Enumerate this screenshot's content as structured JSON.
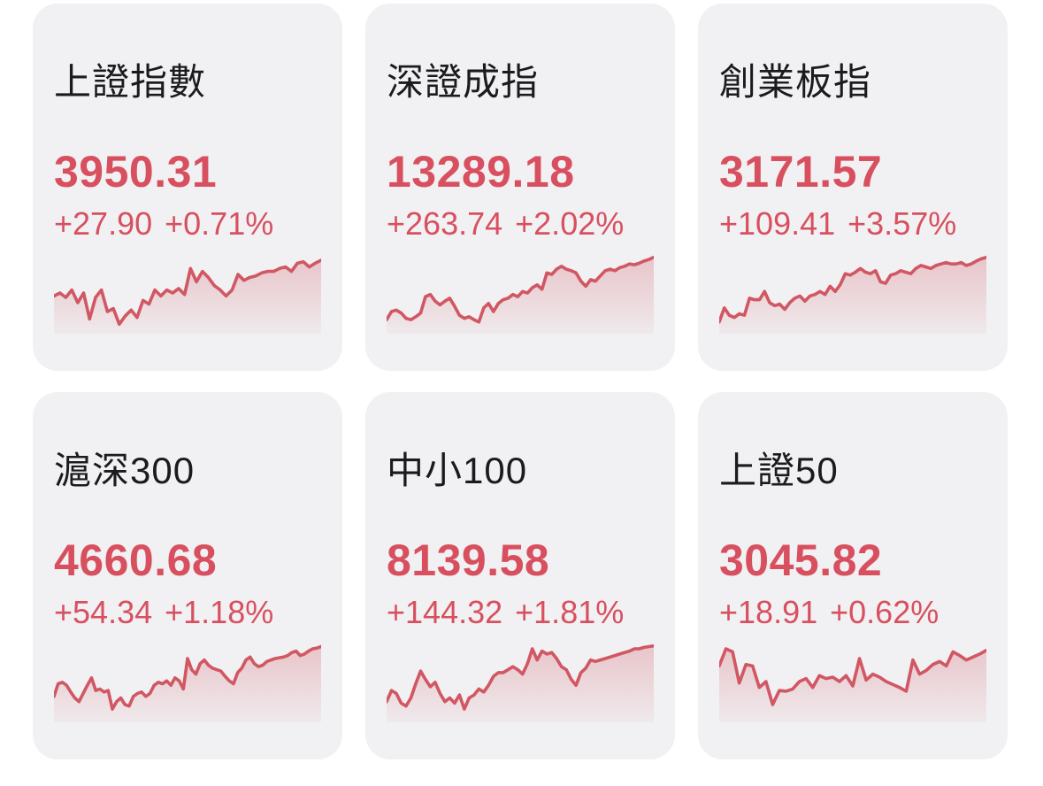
{
  "theme": {
    "page_bg": "#ffffff",
    "card_bg": "#f1f1f3",
    "title_color": "#1b1b1d",
    "accent_red": "#d8505f",
    "line_color": "#d15763",
    "fill_top": "rgba(209,87,99,0.30)",
    "fill_bottom": "rgba(209,87,99,0.05)"
  },
  "cards": [
    {
      "name": "上證指數",
      "price": "3950.31",
      "change": "+27.90",
      "change_pct": "+0.71%",
      "sparkline": {
        "type": "line",
        "trend": "up",
        "values": [
          46,
          50,
          44,
          54,
          37,
          50,
          15,
          44,
          54,
          25,
          29,
          8,
          19,
          27,
          17,
          40,
          35,
          54,
          46,
          54,
          50,
          56,
          48,
          83,
          65,
          79,
          71,
          60,
          54,
          46,
          54,
          75,
          67,
          71,
          73,
          77,
          79,
          79,
          83,
          85,
          79,
          90,
          92,
          85,
          90,
          94
        ]
      }
    },
    {
      "name": "深證成指",
      "price": "13289.18",
      "change": "+263.74",
      "change_pct": "+2.02%",
      "sparkline": {
        "type": "line",
        "trend": "up",
        "values": [
          14,
          25,
          27,
          23,
          16,
          14,
          18,
          23,
          45,
          48,
          39,
          34,
          39,
          43,
          32,
          20,
          16,
          18,
          14,
          11,
          30,
          36,
          25,
          36,
          41,
          43,
          48,
          45,
          52,
          50,
          57,
          61,
          55,
          77,
          75,
          82,
          86,
          82,
          80,
          77,
          66,
          59,
          68,
          66,
          73,
          80,
          82,
          80,
          84,
          86,
          89,
          88,
          90,
          93,
          95,
          98
        ]
      }
    },
    {
      "name": "創業板指",
      "price": "3171.57",
      "change": "+109.41",
      "change_pct": "+3.57%",
      "sparkline": {
        "type": "line",
        "trend": "up",
        "values": [
          11,
          30,
          20,
          17,
          22,
          20,
          43,
          41,
          41,
          52,
          37,
          33,
          35,
          28,
          37,
          43,
          46,
          39,
          46,
          48,
          52,
          48,
          59,
          52,
          61,
          76,
          74,
          78,
          83,
          78,
          76,
          80,
          65,
          63,
          74,
          76,
          80,
          78,
          76,
          83,
          87,
          85,
          83,
          87,
          89,
          91,
          89,
          89,
          91,
          87,
          89,
          93,
          96,
          98
        ]
      }
    },
    {
      "name": "滬深300",
      "price": "4660.68",
      "change": "+54.34",
      "change_pct": "+1.18%",
      "sparkline": {
        "type": "line",
        "trend": "up",
        "values": [
          30,
          47,
          49,
          45,
          36,
          28,
          23,
          34,
          45,
          55,
          38,
          40,
          36,
          38,
          13,
          23,
          28,
          19,
          17,
          30,
          34,
          36,
          30,
          34,
          45,
          49,
          47,
          51,
          45,
          55,
          51,
          40,
          81,
          66,
          60,
          74,
          79,
          72,
          68,
          66,
          64,
          57,
          51,
          47,
          62,
          68,
          79,
          83,
          74,
          70,
          72,
          77,
          79,
          81,
          82,
          83,
          85,
          89,
          91,
          85,
          87,
          91,
          94,
          95,
          97
        ]
      }
    },
    {
      "name": "中小100",
      "price": "8139.58",
      "change": "+144.32",
      "change_pct": "+1.81%",
      "sparkline": {
        "type": "line",
        "trend": "up",
        "values": [
          23,
          38,
          34,
          21,
          17,
          28,
          47,
          64,
          53,
          43,
          49,
          34,
          23,
          28,
          21,
          32,
          13,
          28,
          32,
          40,
          36,
          45,
          57,
          62,
          62,
          66,
          70,
          66,
          60,
          74,
          94,
          79,
          91,
          87,
          89,
          81,
          70,
          66,
          53,
          45,
          62,
          68,
          79,
          77,
          79,
          81,
          83,
          85,
          87,
          89,
          91,
          94,
          94,
          96,
          97,
          98
        ]
      }
    },
    {
      "name": "上證50",
      "price": "3045.82",
      "change": "+18.91",
      "change_pct": "+0.62%",
      "sparkline": {
        "type": "line",
        "trend": "up",
        "values": [
          71,
          94,
          90,
          48,
          73,
          71,
          42,
          50,
          19,
          38,
          37,
          40,
          50,
          54,
          42,
          58,
          54,
          56,
          50,
          58,
          44,
          81,
          52,
          60,
          56,
          50,
          46,
          42,
          37,
          79,
          60,
          65,
          73,
          77,
          71,
          90,
          85,
          79,
          83,
          87,
          92
        ]
      }
    }
  ]
}
